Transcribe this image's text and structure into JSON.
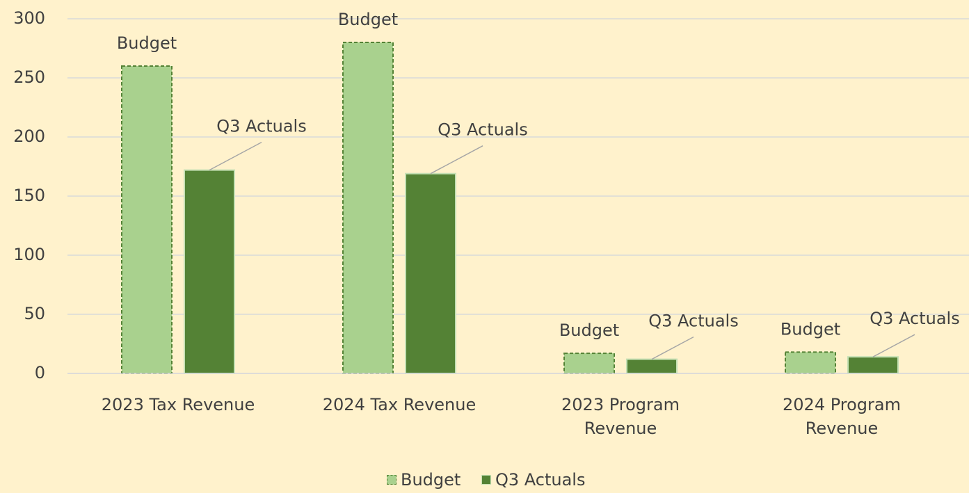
{
  "chart_data": {
    "type": "bar",
    "categories": [
      "2023 Tax Revenue",
      "2024 Tax Revenue",
      "2023 Program Revenue",
      "2024 Program Revenue"
    ],
    "series": [
      {
        "name": "Budget",
        "color": "#a9d18e",
        "values": [
          260,
          280,
          17,
          18
        ]
      },
      {
        "name": "Q3 Actuals",
        "color": "#548235",
        "values": [
          172,
          169,
          12,
          14
        ]
      }
    ],
    "ylim": [
      0,
      300
    ],
    "yticks": [
      0,
      50,
      100,
      150,
      200,
      250,
      300
    ],
    "grid": true,
    "legend": "bottom"
  }
}
